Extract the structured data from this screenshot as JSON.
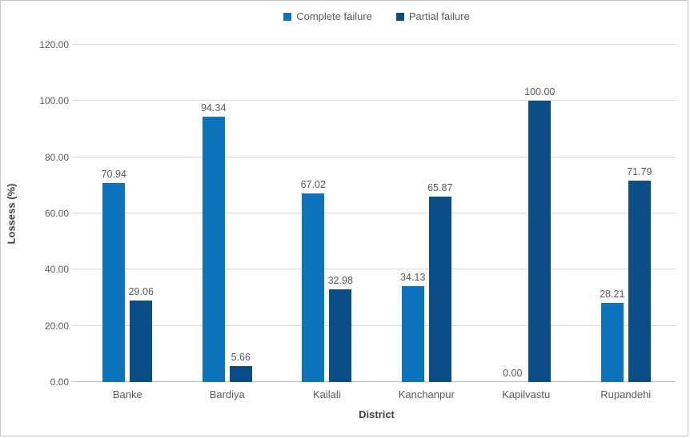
{
  "chart_data": {
    "type": "bar",
    "title": "",
    "categories": [
      "Banke",
      "Bardiya",
      "Kailali",
      "Kanchanpur",
      "Kapilvastu",
      "Rupandehi"
    ],
    "series": [
      {
        "name": "Complete failure",
        "color": "#0e73bd",
        "values": [
          70.94,
          94.34,
          67.02,
          34.13,
          0.0,
          28.21
        ]
      },
      {
        "name": "Partial failure",
        "color": "#0b4e87",
        "values": [
          29.06,
          5.66,
          32.98,
          65.87,
          100.0,
          71.79
        ]
      }
    ],
    "xlabel": "District",
    "ylabel": "Lossess (%)",
    "ylim": [
      0,
      120
    ],
    "ytick_step": 20,
    "ytick_labels": [
      "0.00",
      "20.00",
      "40.00",
      "60.00",
      "80.00",
      "100.00",
      "120.00"
    ],
    "value_label_decimals": 2,
    "grid": true,
    "legend_position": "top"
  },
  "colors": {
    "series_complete_failure": "#0e73bd",
    "series_partial_failure": "#0b4e87",
    "gridline": "#d9d9d9",
    "axis_line": "#bfbfbf",
    "tick_text": "#595959",
    "axis_title_text": "#404040",
    "frame_border": "#c6c6c6",
    "background": "#ffffff"
  }
}
